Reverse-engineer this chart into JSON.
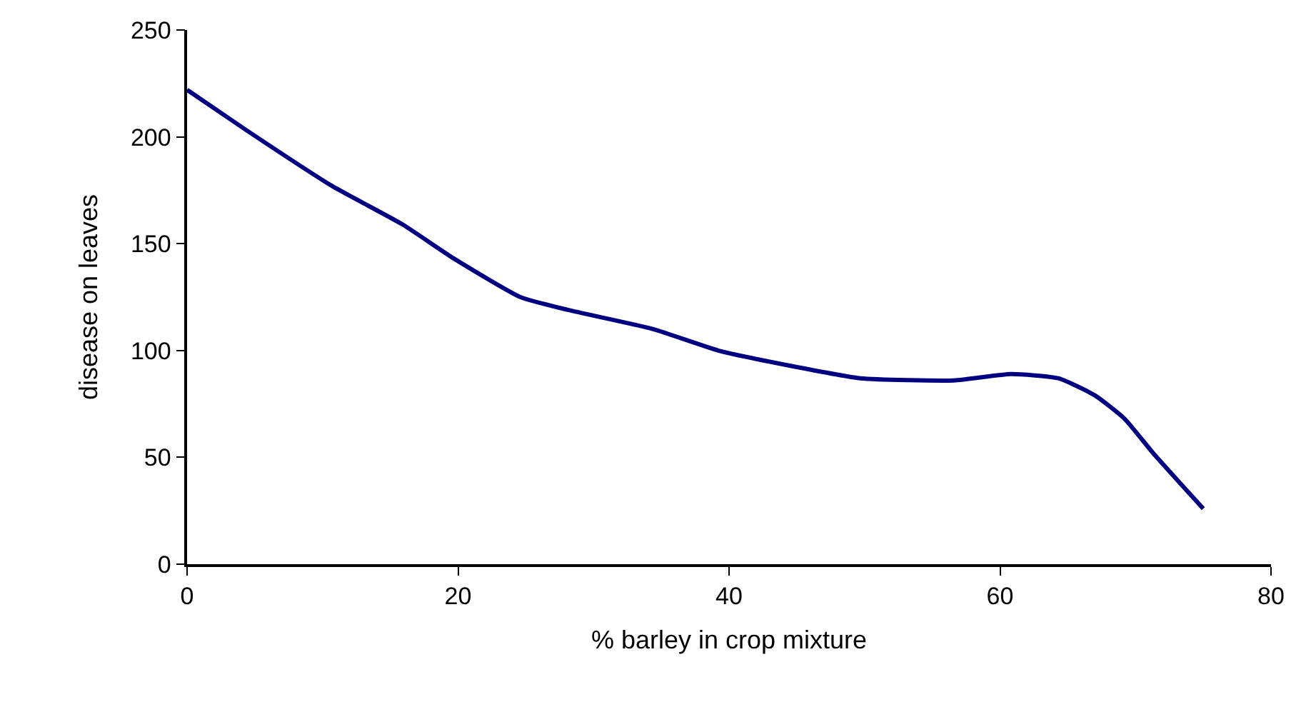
{
  "chart_data": {
    "type": "line",
    "xlabel": "% barley in crop mixture",
    "ylabel": "disease on leaves",
    "x": [
      0,
      4.4,
      10.7,
      15.9,
      19.7,
      24.6,
      28.1,
      34.4,
      39.2,
      44.4,
      49.7,
      56.6,
      60.8,
      64.3,
      67,
      69.2,
      71.3,
      75
    ],
    "series": [
      {
        "color": "#000080",
        "values": [
          222,
          203,
          177,
          159,
          143,
          125,
          119,
          110,
          100,
          93,
          87,
          86,
          89,
          87,
          79,
          68,
          52,
          26
        ]
      }
    ],
    "xlim": [
      0,
      80
    ],
    "xticks": [
      0,
      20,
      40,
      60,
      80
    ],
    "ylim": [
      0,
      250
    ],
    "yticks": [
      0,
      50,
      100,
      150,
      200,
      250
    ],
    "marker": "none",
    "line_style": "solid"
  }
}
